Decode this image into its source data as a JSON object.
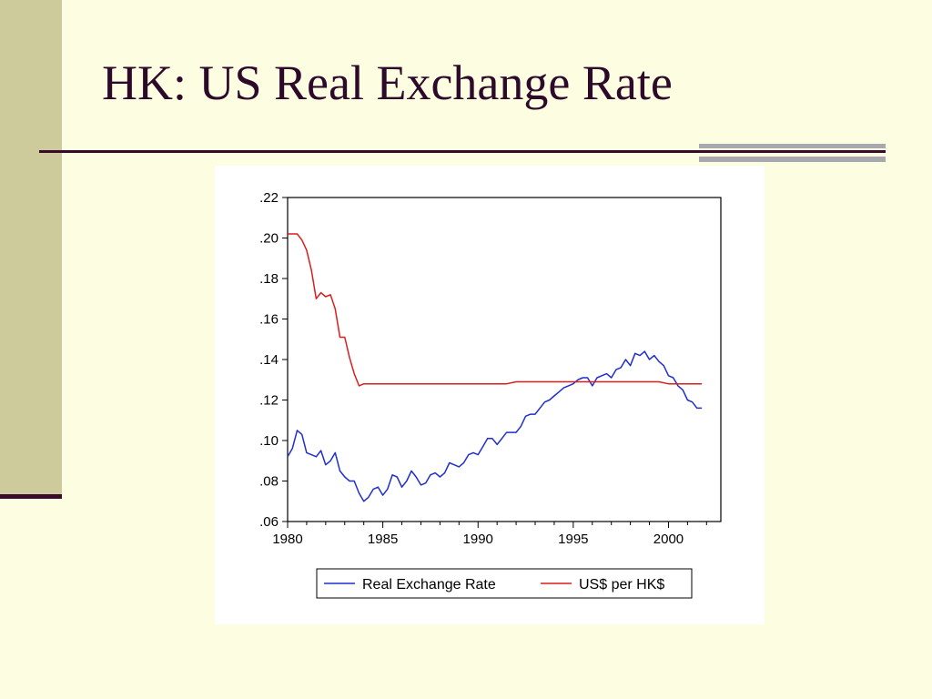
{
  "slide": {
    "title": "HK: US Real Exchange Rate",
    "colors": {
      "background": "#fdfde1",
      "title": "#2d0a2a",
      "accent_bar": "#cdcb9c",
      "rule": "#3a0a2a",
      "accent_grey": "#a8a8b0"
    }
  },
  "chart_data": {
    "type": "line",
    "xlim": [
      1980,
      2002.75
    ],
    "ylim": [
      0.06,
      0.22
    ],
    "x_ticks": [
      1980,
      1985,
      1990,
      1995,
      2000
    ],
    "x_tick_labels": [
      "1980",
      "1985",
      "1990",
      "1995",
      "2000"
    ],
    "y_ticks": [
      0.06,
      0.08,
      0.1,
      0.12,
      0.14,
      0.16,
      0.18,
      0.2,
      0.22
    ],
    "y_tick_labels": [
      ".06",
      ".08",
      ".10",
      ".12",
      ".14",
      ".16",
      ".18",
      ".20",
      ".22"
    ],
    "grid": false,
    "legend_position": "bottom",
    "series": [
      {
        "name": "Real Exchange Rate",
        "color": "#1f2ed0",
        "x": [
          1980.0,
          1980.25,
          1980.5,
          1980.75,
          1981.0,
          1981.25,
          1981.5,
          1981.75,
          1982.0,
          1982.25,
          1982.5,
          1982.75,
          1983.0,
          1983.25,
          1983.5,
          1983.75,
          1984.0,
          1984.25,
          1984.5,
          1984.75,
          1985.0,
          1985.25,
          1985.5,
          1985.75,
          1986.0,
          1986.25,
          1986.5,
          1986.75,
          1987.0,
          1987.25,
          1987.5,
          1987.75,
          1988.0,
          1988.25,
          1988.5,
          1988.75,
          1989.0,
          1989.25,
          1989.5,
          1989.75,
          1990.0,
          1990.25,
          1990.5,
          1990.75,
          1991.0,
          1991.25,
          1991.5,
          1991.75,
          1992.0,
          1992.25,
          1992.5,
          1992.75,
          1993.0,
          1993.25,
          1993.5,
          1993.75,
          1994.0,
          1994.25,
          1994.5,
          1994.75,
          1995.0,
          1995.25,
          1995.5,
          1995.75,
          1996.0,
          1996.25,
          1996.5,
          1996.75,
          1997.0,
          1997.25,
          1997.5,
          1997.75,
          1998.0,
          1998.25,
          1998.5,
          1998.75,
          1999.0,
          1999.25,
          1999.5,
          1999.75,
          2000.0,
          2000.25,
          2000.5,
          2000.75,
          2001.0,
          2001.25,
          2001.5,
          2001.75
        ],
        "values": [
          0.092,
          0.096,
          0.105,
          0.103,
          0.094,
          0.093,
          0.092,
          0.095,
          0.088,
          0.09,
          0.094,
          0.085,
          0.082,
          0.08,
          0.08,
          0.074,
          0.07,
          0.072,
          0.076,
          0.077,
          0.073,
          0.076,
          0.083,
          0.082,
          0.077,
          0.08,
          0.085,
          0.082,
          0.078,
          0.079,
          0.083,
          0.084,
          0.082,
          0.084,
          0.089,
          0.088,
          0.087,
          0.089,
          0.093,
          0.094,
          0.093,
          0.097,
          0.101,
          0.101,
          0.098,
          0.101,
          0.104,
          0.104,
          0.104,
          0.107,
          0.112,
          0.113,
          0.113,
          0.116,
          0.119,
          0.12,
          0.122,
          0.124,
          0.126,
          0.127,
          0.128,
          0.13,
          0.131,
          0.131,
          0.127,
          0.131,
          0.132,
          0.133,
          0.131,
          0.135,
          0.136,
          0.14,
          0.137,
          0.143,
          0.142,
          0.144,
          0.14,
          0.142,
          0.139,
          0.137,
          0.132,
          0.131,
          0.127,
          0.125,
          0.12,
          0.119,
          0.116,
          0.116
        ]
      },
      {
        "name": "US$ per HK$",
        "color": "#d81e1e",
        "x": [
          1980.0,
          1980.25,
          1980.5,
          1980.75,
          1981.0,
          1981.25,
          1981.5,
          1981.75,
          1982.0,
          1982.25,
          1982.5,
          1982.75,
          1983.0,
          1983.25,
          1983.5,
          1983.75,
          1984.0,
          1984.25,
          1984.5,
          1984.75,
          1985.0,
          1985.25,
          1985.5,
          1985.75,
          1986.0,
          1986.5,
          1987.0,
          1987.5,
          1988.0,
          1988.5,
          1989.0,
          1989.5,
          1990.0,
          1990.5,
          1991.0,
          1991.5,
          1992.0,
          1992.5,
          1993.0,
          1993.5,
          1994.0,
          1994.5,
          1995.0,
          1995.5,
          1996.0,
          1996.5,
          1997.0,
          1997.5,
          1998.0,
          1998.5,
          1999.0,
          1999.5,
          2000.0,
          2000.5,
          2001.0,
          2001.5,
          2001.75
        ],
        "values": [
          0.202,
          0.202,
          0.202,
          0.199,
          0.194,
          0.184,
          0.17,
          0.173,
          0.171,
          0.172,
          0.165,
          0.151,
          0.151,
          0.141,
          0.133,
          0.127,
          0.128,
          0.128,
          0.128,
          0.128,
          0.128,
          0.128,
          0.128,
          0.128,
          0.128,
          0.128,
          0.128,
          0.128,
          0.128,
          0.128,
          0.128,
          0.128,
          0.128,
          0.128,
          0.128,
          0.128,
          0.129,
          0.129,
          0.129,
          0.129,
          0.129,
          0.129,
          0.129,
          0.129,
          0.129,
          0.129,
          0.129,
          0.129,
          0.129,
          0.129,
          0.129,
          0.129,
          0.128,
          0.128,
          0.128,
          0.128,
          0.128
        ]
      }
    ]
  }
}
